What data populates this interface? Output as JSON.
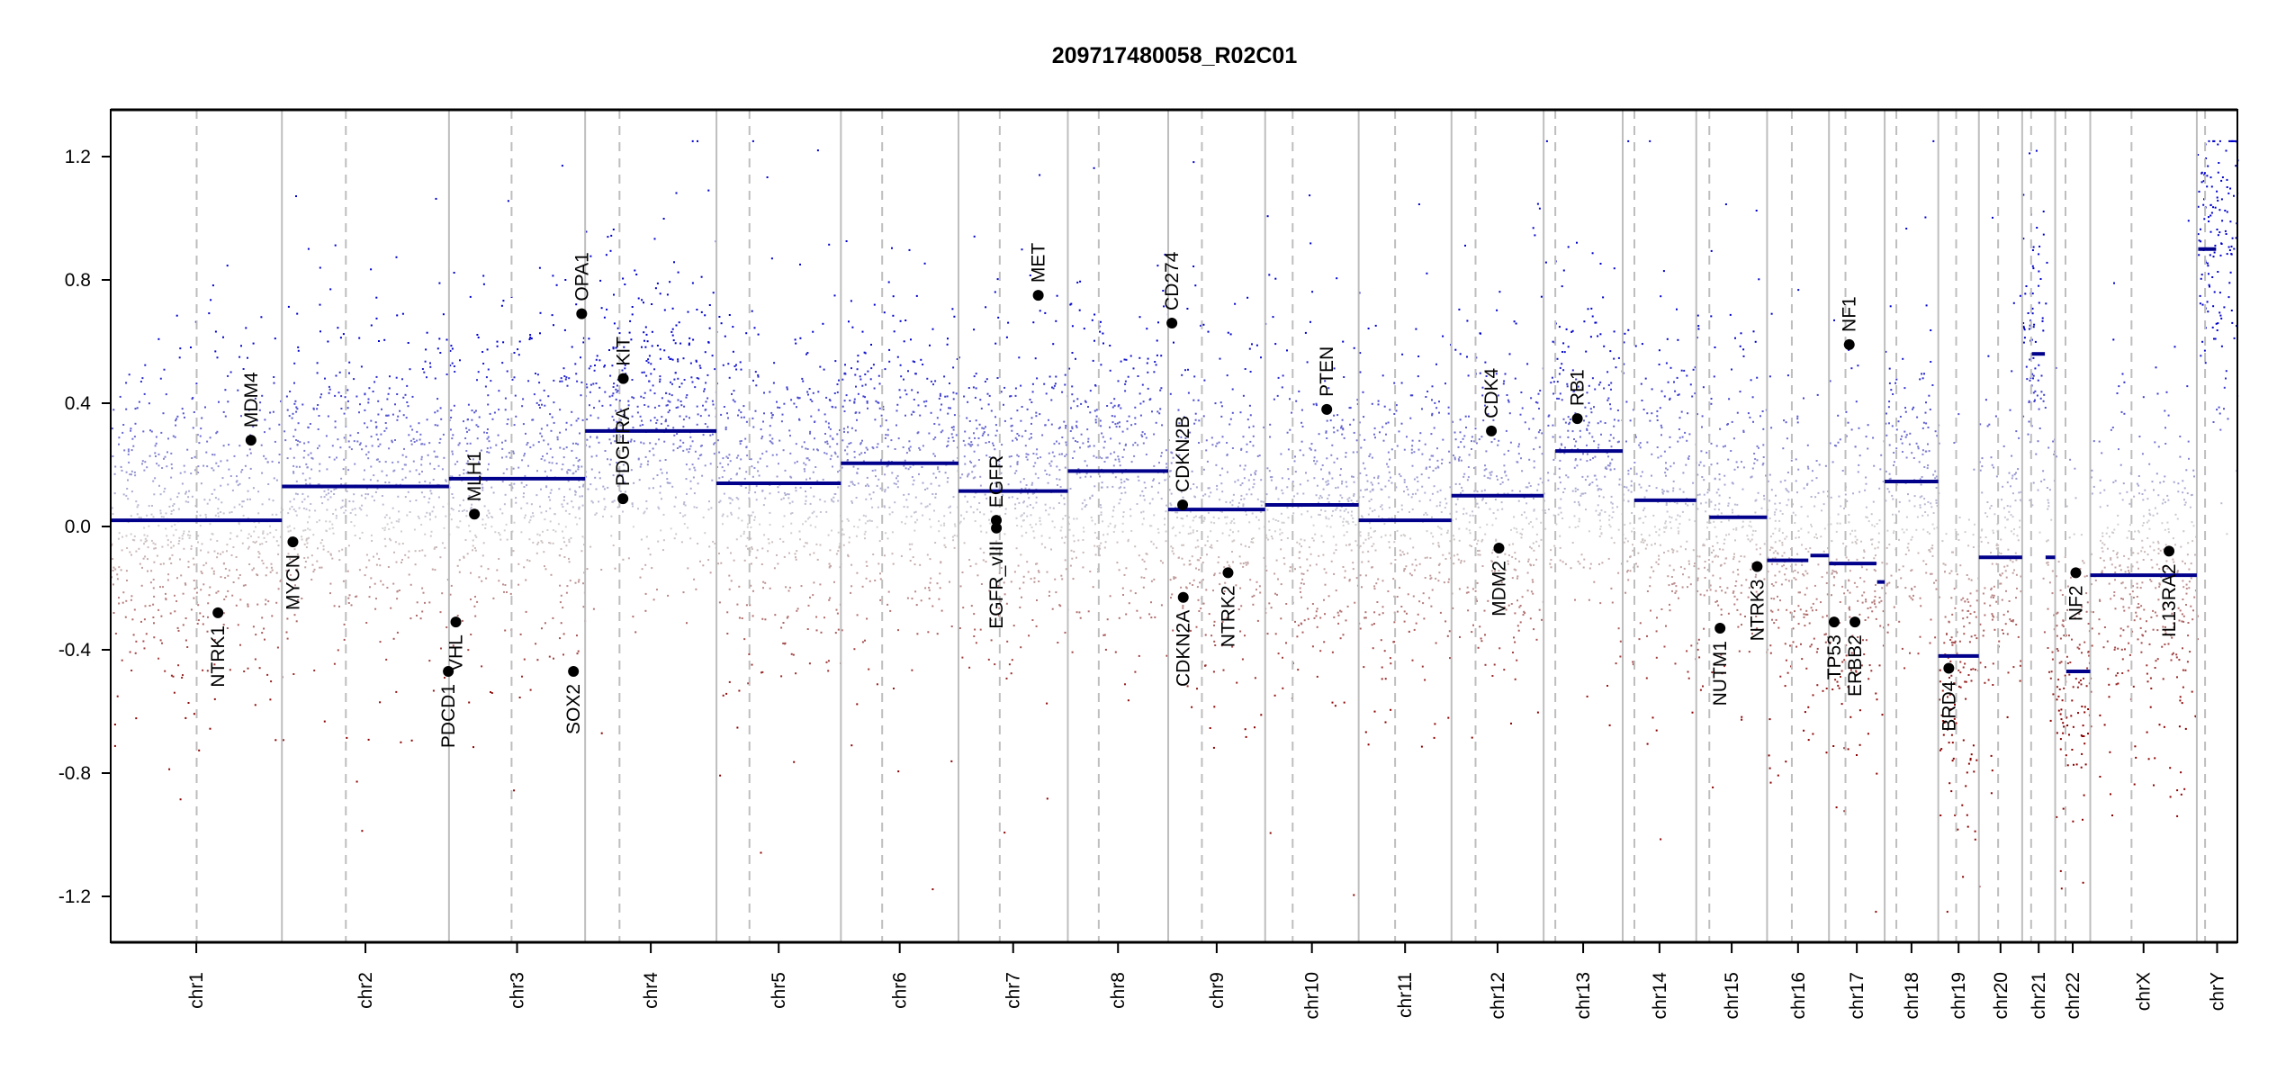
{
  "chart_data": {
    "type": "scatter",
    "title": "209717480058_R02C01",
    "xlabel": "",
    "ylabel": "",
    "ylim": [
      -1.35,
      1.35
    ],
    "yticks": [
      -1.2,
      -0.8,
      -0.4,
      0.0,
      0.4,
      0.8,
      1.2
    ],
    "ytick_labels": [
      "-1.2",
      "-0.8",
      "-0.4",
      "0.0",
      "0.4",
      "0.8",
      "1.2"
    ],
    "grid": false,
    "point_colors": {
      "loss": "#8B0000",
      "neutral": "#D3D3D3",
      "gain": "#0000CD"
    },
    "segment_color": "#00008B",
    "chromosomes": [
      {
        "name": "chr1",
        "length_mb": 249,
        "centromere_mb": 125,
        "segments": [
          {
            "start": 0,
            "end": 249,
            "value": 0.02
          }
        ]
      },
      {
        "name": "chr2",
        "length_mb": 243,
        "centromere_mb": 93,
        "segments": [
          {
            "start": 0,
            "end": 243,
            "value": 0.13
          }
        ]
      },
      {
        "name": "chr3",
        "length_mb": 198,
        "centromere_mb": 91,
        "segments": [
          {
            "start": 0,
            "end": 198,
            "value": 0.155
          }
        ]
      },
      {
        "name": "chr4",
        "length_mb": 191,
        "centromere_mb": 50,
        "segments": [
          {
            "start": 0,
            "end": 191,
            "value": 0.31
          }
        ]
      },
      {
        "name": "chr5",
        "length_mb": 181,
        "centromere_mb": 48,
        "segments": [
          {
            "start": 0,
            "end": 181,
            "value": 0.14
          }
        ]
      },
      {
        "name": "chr6",
        "length_mb": 171,
        "centromere_mb": 60,
        "segments": [
          {
            "start": 0,
            "end": 171,
            "value": 0.205
          }
        ]
      },
      {
        "name": "chr7",
        "length_mb": 159,
        "centromere_mb": 60,
        "segments": [
          {
            "start": 0,
            "end": 159,
            "value": 0.115
          }
        ]
      },
      {
        "name": "chr8",
        "length_mb": 146,
        "centromere_mb": 45,
        "segments": [
          {
            "start": 0,
            "end": 146,
            "value": 0.18
          }
        ]
      },
      {
        "name": "chr9",
        "length_mb": 141,
        "centromere_mb": 49,
        "segments": [
          {
            "start": 0,
            "end": 141,
            "value": 0.055
          }
        ]
      },
      {
        "name": "chr10",
        "length_mb": 136,
        "centromere_mb": 40,
        "segments": [
          {
            "start": 0,
            "end": 136,
            "value": 0.07
          }
        ]
      },
      {
        "name": "chr11",
        "length_mb": 135,
        "centromere_mb": 53,
        "segments": [
          {
            "start": 0,
            "end": 135,
            "value": 0.02
          }
        ]
      },
      {
        "name": "chr12",
        "length_mb": 134,
        "centromere_mb": 35,
        "segments": [
          {
            "start": 0,
            "end": 134,
            "value": 0.1
          }
        ]
      },
      {
        "name": "chr13",
        "length_mb": 115,
        "centromere_mb": 17,
        "segments": [
          {
            "start": 17,
            "end": 115,
            "value": 0.245
          }
        ]
      },
      {
        "name": "chr14",
        "length_mb": 107,
        "centromere_mb": 17,
        "segments": [
          {
            "start": 17,
            "end": 107,
            "value": 0.085
          }
        ]
      },
      {
        "name": "chr15",
        "length_mb": 103,
        "centromere_mb": 19,
        "segments": [
          {
            "start": 19,
            "end": 103,
            "value": 0.03
          }
        ]
      },
      {
        "name": "chr16",
        "length_mb": 90,
        "centromere_mb": 36,
        "segments": [
          {
            "start": 0,
            "end": 60,
            "value": -0.11
          },
          {
            "start": 63,
            "end": 90,
            "value": -0.094
          }
        ]
      },
      {
        "name": "chr17",
        "length_mb": 81,
        "centromere_mb": 24,
        "segments": [
          {
            "start": 0,
            "end": 69,
            "value": -0.12
          },
          {
            "start": 70,
            "end": 81,
            "value": -0.18
          }
        ]
      },
      {
        "name": "chr18",
        "length_mb": 78,
        "centromere_mb": 17,
        "segments": [
          {
            "start": 0,
            "end": 78,
            "value": 0.146
          }
        ]
      },
      {
        "name": "chr19",
        "length_mb": 59,
        "centromere_mb": 26,
        "segments": [
          {
            "start": 0,
            "end": 59,
            "value": -0.42
          }
        ]
      },
      {
        "name": "chr20",
        "length_mb": 63,
        "centromere_mb": 28,
        "segments": [
          {
            "start": 0,
            "end": 63,
            "value": -0.1
          }
        ]
      },
      {
        "name": "chr21",
        "length_mb": 48,
        "centromere_mb": 13,
        "segments": [
          {
            "start": 14,
            "end": 33,
            "value": 0.56
          },
          {
            "start": 34,
            "end": 48,
            "value": -0.1
          }
        ]
      },
      {
        "name": "chr22",
        "length_mb": 51,
        "centromere_mb": 15,
        "segments": [
          {
            "start": 16,
            "end": 51,
            "value": -0.47
          }
        ]
      },
      {
        "name": "chrX",
        "length_mb": 155,
        "centromere_mb": 60,
        "segments": [
          {
            "start": 0,
            "end": 155,
            "value": -0.158
          }
        ]
      },
      {
        "name": "chrY",
        "length_mb": 59,
        "centromere_mb": 12,
        "segments": [
          {
            "start": 2,
            "end": 28,
            "value": 0.9
          }
        ]
      }
    ],
    "genes": [
      {
        "name": "NTRK1",
        "chrom": "chr1",
        "pos_mb": 156,
        "value": -0.28
      },
      {
        "name": "MDM4",
        "chrom": "chr1",
        "pos_mb": 204,
        "value": 0.28
      },
      {
        "name": "MYCN",
        "chrom": "chr2",
        "pos_mb": 16,
        "value": -0.05
      },
      {
        "name": "PDCD1",
        "chrom": "chr2",
        "pos_mb": 242,
        "value": -0.47
      },
      {
        "name": "VHL",
        "chrom": "chr3",
        "pos_mb": 10,
        "value": -0.31
      },
      {
        "name": "MLH1",
        "chrom": "chr3",
        "pos_mb": 37,
        "value": 0.04
      },
      {
        "name": "SOX2",
        "chrom": "chr3",
        "pos_mb": 181,
        "value": -0.47
      },
      {
        "name": "OPA1",
        "chrom": "chr3",
        "pos_mb": 193,
        "value": 0.69
      },
      {
        "name": "PDGFRA",
        "chrom": "chr4",
        "pos_mb": 55,
        "value": 0.09
      },
      {
        "name": "KIT",
        "chrom": "chr4",
        "pos_mb": 55.5,
        "value": 0.48
      },
      {
        "name": "EGFR",
        "chrom": "chr7",
        "pos_mb": 55,
        "value": 0.02
      },
      {
        "name": "EGFR_vIII",
        "chrom": "chr7",
        "pos_mb": 55.1,
        "value": -0.005
      },
      {
        "name": "MET",
        "chrom": "chr7",
        "pos_mb": 116,
        "value": 0.75
      },
      {
        "name": "CD274",
        "chrom": "chr9",
        "pos_mb": 5.4,
        "value": 0.66
      },
      {
        "name": "CDKN2B",
        "chrom": "chr9",
        "pos_mb": 21.0,
        "value": 0.07
      },
      {
        "name": "CDKN2A",
        "chrom": "chr9",
        "pos_mb": 21.9,
        "value": -0.23
      },
      {
        "name": "NTRK2",
        "chrom": "chr9",
        "pos_mb": 87,
        "value": -0.15
      },
      {
        "name": "PTEN",
        "chrom": "chr10",
        "pos_mb": 89.6,
        "value": 0.38
      },
      {
        "name": "CDK4",
        "chrom": "chr12",
        "pos_mb": 58,
        "value": 0.31
      },
      {
        "name": "MDM2",
        "chrom": "chr12",
        "pos_mb": 69,
        "value": -0.07
      },
      {
        "name": "RB1",
        "chrom": "chr13",
        "pos_mb": 49,
        "value": 0.35
      },
      {
        "name": "NUTM1",
        "chrom": "chr15",
        "pos_mb": 34.6,
        "value": -0.33
      },
      {
        "name": "NTRK3",
        "chrom": "chr15",
        "pos_mb": 88.5,
        "value": -0.13
      },
      {
        "name": "TP53",
        "chrom": "chr17",
        "pos_mb": 7.5,
        "value": -0.31
      },
      {
        "name": "NF1",
        "chrom": "chr17",
        "pos_mb": 29.5,
        "value": 0.59
      },
      {
        "name": "ERBB2",
        "chrom": "chr17",
        "pos_mb": 37.8,
        "value": -0.31
      },
      {
        "name": "BRD4",
        "chrom": "chr19",
        "pos_mb": 15.3,
        "value": -0.46
      },
      {
        "name": "NF2",
        "chrom": "chr22",
        "pos_mb": 30,
        "value": -0.15
      },
      {
        "name": "IL13RA2",
        "chrom": "chrX",
        "pos_mb": 114.6,
        "value": -0.08
      }
    ]
  }
}
